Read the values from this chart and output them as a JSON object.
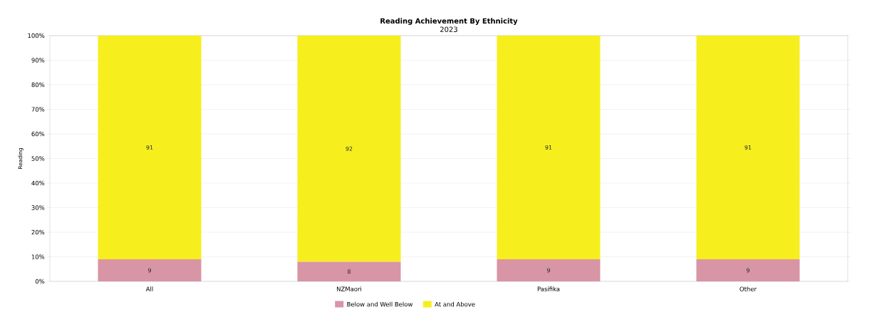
{
  "chart_data": {
    "type": "bar",
    "title": "Reading Achievement By Ethnicity",
    "subtitle": "2023",
    "ylabel": "Reading",
    "categories": [
      "All",
      "NZMaori",
      "Pasifika",
      "Other"
    ],
    "series": [
      {
        "name": "Below and Well Below",
        "color": "#d895a5",
        "values": [
          9,
          8,
          9,
          9
        ]
      },
      {
        "name": "At and Above",
        "color": "#f7ee1e",
        "values": [
          91,
          92,
          91,
          91
        ]
      }
    ],
    "stacked": true,
    "data_labels": true,
    "grid": true,
    "legend": "bottom",
    "ylim": [
      0,
      100
    ],
    "yticks": [
      {
        "value": 0,
        "label": "0%"
      },
      {
        "value": 10,
        "label": "10%"
      },
      {
        "value": 20,
        "label": "20%"
      },
      {
        "value": 30,
        "label": "30%"
      },
      {
        "value": 40,
        "label": "40%"
      },
      {
        "value": 50,
        "label": "50%"
      },
      {
        "value": 60,
        "label": "60%"
      },
      {
        "value": 70,
        "label": "70%"
      },
      {
        "value": 80,
        "label": "80%"
      },
      {
        "value": 90,
        "label": "90%"
      },
      {
        "value": 100,
        "label": "100%"
      }
    ]
  }
}
